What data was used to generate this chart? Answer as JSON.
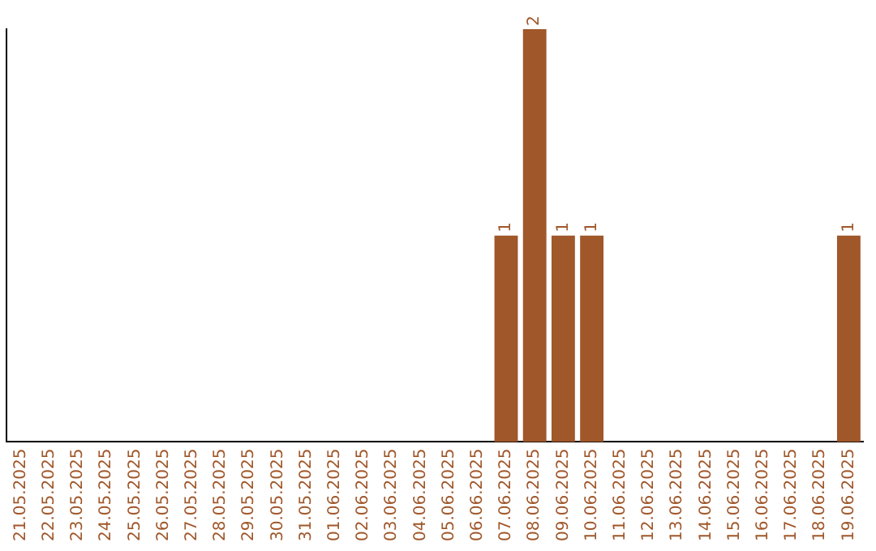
{
  "chart_data": {
    "type": "bar",
    "categories": [
      "21.05.2025",
      "22.05.2025",
      "23.05.2025",
      "24.05.2025",
      "25.05.2025",
      "26.05.2025",
      "27.05.2025",
      "28.05.2025",
      "29.05.2025",
      "30.05.2025",
      "31.05.2025",
      "01.06.2025",
      "02.06.2025",
      "03.06.2025",
      "04.06.2025",
      "05.06.2025",
      "06.06.2025",
      "07.06.2025",
      "08.06.2025",
      "09.06.2025",
      "10.06.2025",
      "11.06.2025",
      "12.06.2025",
      "13.06.2025",
      "14.06.2025",
      "15.06.2025",
      "16.06.2025",
      "17.06.2025",
      "18.06.2025",
      "19.06.2025"
    ],
    "values": [
      null,
      null,
      null,
      null,
      null,
      null,
      null,
      null,
      null,
      null,
      null,
      null,
      null,
      null,
      null,
      null,
      null,
      1,
      2,
      1,
      1,
      null,
      null,
      null,
      null,
      null,
      null,
      null,
      null,
      1
    ],
    "value_labels": [
      null,
      null,
      null,
      null,
      null,
      null,
      null,
      null,
      null,
      null,
      null,
      null,
      null,
      null,
      null,
      null,
      null,
      "1",
      "2",
      "1",
      "1",
      null,
      null,
      null,
      null,
      null,
      null,
      null,
      null,
      "1"
    ],
    "color": "#a0572a",
    "tick_labels": "x",
    "grid": false,
    "legend": false
  }
}
